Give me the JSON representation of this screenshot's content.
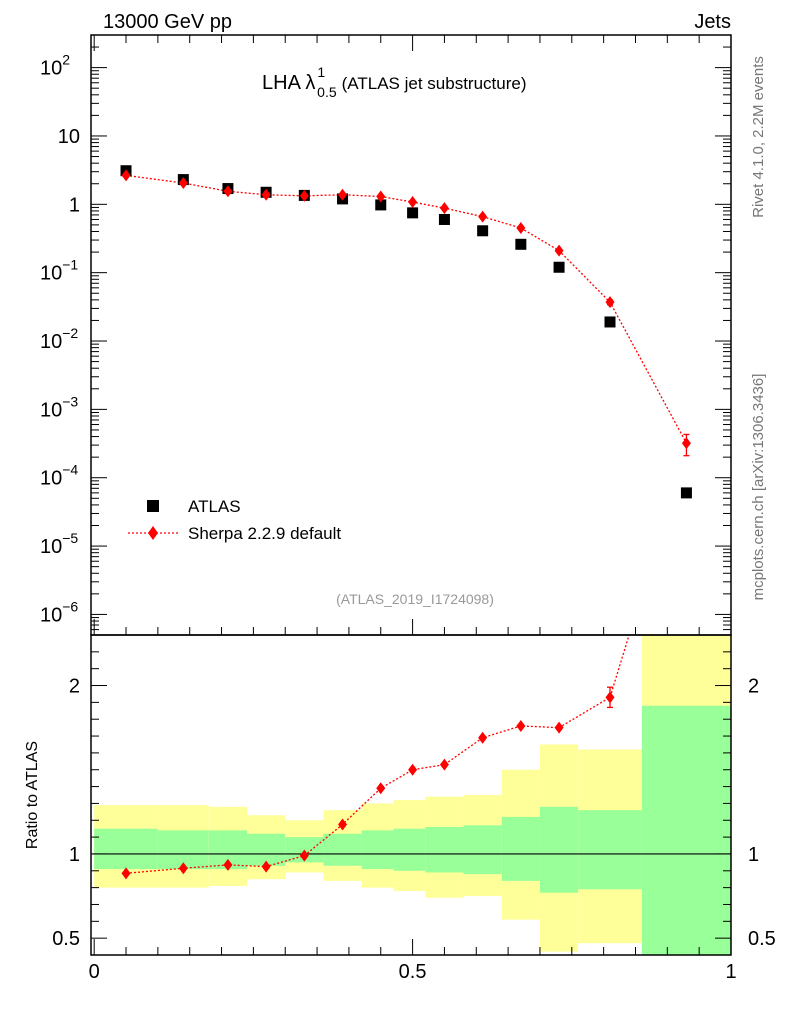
{
  "header": {
    "left": "13000 GeV pp",
    "right": "Jets"
  },
  "side_text": {
    "top": "Rivet 4.1.0,  2.2M events",
    "bottom": "mcplots.cern.ch [arXiv:1306.3436]"
  },
  "colors": {
    "data": "#000000",
    "mc": "#ff0000",
    "band_inner": "#99ff99",
    "band_outer": "#ffff99"
  },
  "chart_data": [
    {
      "type": "scatter",
      "title": "LHA λ",
      "title_sup": "1",
      "title_sub": "0.5",
      "title_suffix": "(ATLAS jet substructure)",
      "analysis_label": "(ATLAS_2019_I1724098)",
      "yscale": "log",
      "ylim": [
        5e-07,
        300
      ],
      "xlim": [
        -0.005,
        1.0
      ],
      "y_ticks": [
        {
          "v": 1e-06,
          "base": "10",
          "exp": "−6"
        },
        {
          "v": 1e-05,
          "base": "10",
          "exp": "−5"
        },
        {
          "v": 0.0001,
          "base": "10",
          "exp": "−4"
        },
        {
          "v": 0.001,
          "base": "10",
          "exp": "−3"
        },
        {
          "v": 0.01,
          "base": "10",
          "exp": "−2"
        },
        {
          "v": 0.1,
          "base": "10",
          "exp": "−1"
        },
        {
          "v": 1,
          "base": "1",
          "exp": ""
        },
        {
          "v": 10,
          "base": "10",
          "exp": ""
        },
        {
          "v": 100,
          "base": "10",
          "exp": "2"
        }
      ],
      "legend": [
        {
          "label": "ATLAS",
          "marker": "square"
        },
        {
          "label": "Sherpa 2.2.9 default",
          "marker": "diamond"
        }
      ],
      "series": [
        {
          "name": "ATLAS",
          "x": [
            0.05,
            0.14,
            0.21,
            0.27,
            0.33,
            0.39,
            0.45,
            0.5,
            0.55,
            0.61,
            0.67,
            0.73,
            0.81,
            0.93
          ],
          "y": [
            3.1,
            2.3,
            1.7,
            1.5,
            1.35,
            1.2,
            0.98,
            0.75,
            0.6,
            0.41,
            0.26,
            0.12,
            0.019,
            6e-05
          ]
        },
        {
          "name": "Sherpa 2.2.9 default",
          "x": [
            0.05,
            0.14,
            0.21,
            0.27,
            0.33,
            0.39,
            0.45,
            0.5,
            0.55,
            0.61,
            0.67,
            0.73,
            0.81,
            0.93
          ],
          "y": [
            2.65,
            2.05,
            1.55,
            1.38,
            1.33,
            1.38,
            1.3,
            1.08,
            0.88,
            0.66,
            0.45,
            0.21,
            0.037,
            0.00032
          ],
          "yerr_low": [
            0,
            0,
            0,
            0,
            0,
            0,
            0,
            0,
            0,
            0,
            0,
            0.01,
            0.003,
            0.00011
          ],
          "yerr_high": [
            0,
            0,
            0,
            0,
            0,
            0,
            0,
            0,
            0,
            0,
            0,
            0.01,
            0.003,
            0.00011
          ]
        }
      ]
    },
    {
      "type": "scatter",
      "ylabel": "Ratio to ATLAS",
      "xlim": [
        -0.005,
        1.0
      ],
      "ylim": [
        0.4,
        2.3
      ],
      "x_ticks": [
        {
          "v": 0,
          "label": "0"
        },
        {
          "v": 0.5,
          "label": "0.5"
        },
        {
          "v": 1,
          "label": "1"
        }
      ],
      "y_ticks": [
        {
          "v": 0.5,
          "label": "0.5"
        },
        {
          "v": 1,
          "label": "1"
        },
        {
          "v": 2,
          "label": "2"
        }
      ],
      "bins": [
        {
          "lo": 0.0,
          "hi": 0.1,
          "inner": [
            0.91,
            1.15
          ],
          "outer": [
            0.8,
            1.29
          ]
        },
        {
          "lo": 0.1,
          "hi": 0.18,
          "inner": [
            0.91,
            1.14
          ],
          "outer": [
            0.8,
            1.29
          ]
        },
        {
          "lo": 0.18,
          "hi": 0.24,
          "inner": [
            0.91,
            1.14
          ],
          "outer": [
            0.81,
            1.28
          ]
        },
        {
          "lo": 0.24,
          "hi": 0.3,
          "inner": [
            0.93,
            1.12
          ],
          "outer": [
            0.85,
            1.23
          ]
        },
        {
          "lo": 0.3,
          "hi": 0.36,
          "inner": [
            0.95,
            1.1
          ],
          "outer": [
            0.89,
            1.2
          ]
        },
        {
          "lo": 0.36,
          "hi": 0.42,
          "inner": [
            0.93,
            1.12
          ],
          "outer": [
            0.84,
            1.26
          ]
        },
        {
          "lo": 0.42,
          "hi": 0.47,
          "inner": [
            0.91,
            1.14
          ],
          "outer": [
            0.8,
            1.3
          ]
        },
        {
          "lo": 0.47,
          "hi": 0.52,
          "inner": [
            0.9,
            1.15
          ],
          "outer": [
            0.78,
            1.32
          ]
        },
        {
          "lo": 0.52,
          "hi": 0.58,
          "inner": [
            0.89,
            1.16
          ],
          "outer": [
            0.74,
            1.34
          ]
        },
        {
          "lo": 0.58,
          "hi": 0.64,
          "inner": [
            0.88,
            1.17
          ],
          "outer": [
            0.75,
            1.35
          ]
        },
        {
          "lo": 0.64,
          "hi": 0.7,
          "inner": [
            0.84,
            1.22
          ],
          "outer": [
            0.61,
            1.5
          ]
        },
        {
          "lo": 0.7,
          "hi": 0.76,
          "inner": [
            0.77,
            1.28
          ],
          "outer": [
            0.42,
            1.65
          ]
        },
        {
          "lo": 0.76,
          "hi": 0.86,
          "inner": [
            0.79,
            1.26
          ],
          "outer": [
            0.47,
            1.62
          ]
        },
        {
          "lo": 0.86,
          "hi": 1.0,
          "inner": [
            0.4,
            1.88
          ],
          "outer": [
            0.4,
            2.3
          ]
        }
      ],
      "series": [
        {
          "name": "Sherpa 2.2.9 default",
          "x": [
            0.05,
            0.14,
            0.21,
            0.27,
            0.33,
            0.39,
            0.45,
            0.5,
            0.55,
            0.61,
            0.67,
            0.73,
            0.81
          ],
          "y": [
            0.885,
            0.915,
            0.935,
            0.925,
            0.99,
            1.175,
            1.39,
            1.5,
            1.53,
            1.69,
            1.76,
            1.75,
            1.93
          ],
          "yerr": [
            0,
            0,
            0,
            0,
            0,
            0,
            0,
            0,
            0,
            0,
            0,
            0,
            0.06
          ],
          "line_extends_to": {
            "x": 0.84,
            "y": 2.3
          }
        }
      ]
    }
  ]
}
